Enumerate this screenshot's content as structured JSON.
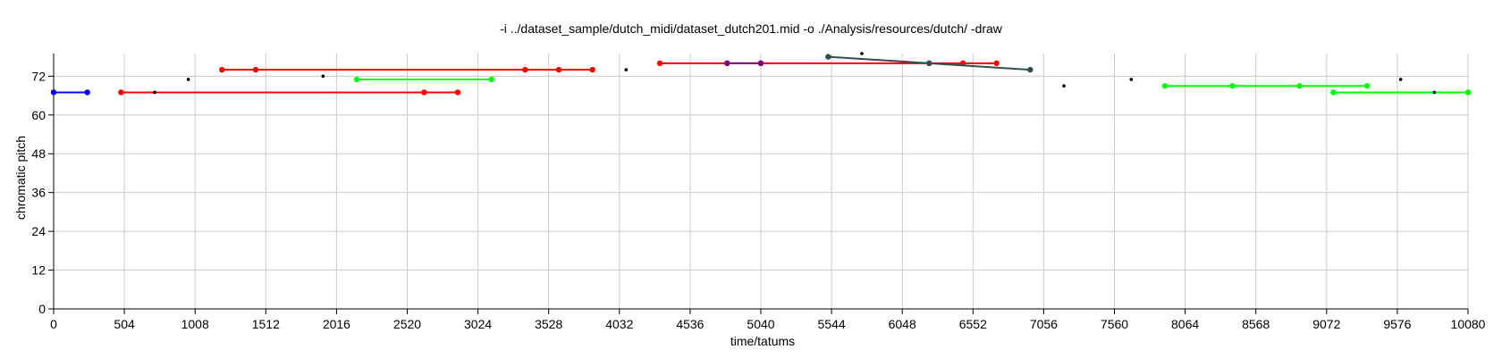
{
  "chart_data": {
    "type": "line",
    "title": "-i ../dataset_sample/dutch_midi/dataset_dutch201.mid -o ./Analysis/resources/dutch/ -draw",
    "xlabel": "time/tatums",
    "ylabel": "chromatic pitch",
    "xlim": [
      0,
      10080
    ],
    "ylim": [
      0,
      79
    ],
    "xticks": [
      0,
      504,
      1008,
      1512,
      2016,
      2520,
      3024,
      3528,
      4032,
      4536,
      5040,
      5544,
      6048,
      6552,
      7056,
      7560,
      8064,
      8568,
      9072,
      9576,
      10080
    ],
    "yticks": [
      0,
      12,
      24,
      36,
      48,
      60,
      72
    ],
    "grid": true,
    "series": [
      {
        "color": "#0000ff",
        "points": [
          [
            0,
            67
          ],
          [
            240,
            67
          ]
        ]
      },
      {
        "color": "#ff0000",
        "points": [
          [
            480,
            67
          ],
          [
            2640,
            67
          ],
          [
            2880,
            67
          ]
        ]
      },
      {
        "color": "#ff0000",
        "points": [
          [
            1200,
            74
          ],
          [
            1440,
            74
          ],
          [
            3360,
            74
          ],
          [
            3600,
            74
          ],
          [
            3840,
            74
          ]
        ]
      },
      {
        "color": "#00ff00",
        "points": [
          [
            2160,
            71
          ],
          [
            3120,
            71
          ]
        ]
      },
      {
        "color": "#ff0000",
        "points": [
          [
            4320,
            76
          ],
          [
            4800,
            76
          ],
          [
            5040,
            76
          ],
          [
            6240,
            76
          ],
          [
            6480,
            76
          ],
          [
            6720,
            76
          ]
        ]
      },
      {
        "color": "#800080",
        "points": [
          [
            4800,
            76
          ],
          [
            5040,
            76
          ]
        ]
      },
      {
        "color": "#2f4f4f",
        "points": [
          [
            5520,
            78
          ],
          [
            6240,
            76
          ],
          [
            6960,
            74
          ]
        ]
      },
      {
        "color": "#00ff00",
        "points": [
          [
            7920,
            69
          ],
          [
            8400,
            69
          ],
          [
            8880,
            69
          ],
          [
            9360,
            69
          ]
        ]
      },
      {
        "color": "#00ff00",
        "points": [
          [
            9120,
            67
          ],
          [
            10080,
            67
          ]
        ]
      }
    ],
    "isolated_notes": [
      [
        720,
        67
      ],
      [
        960,
        71
      ],
      [
        1920,
        72
      ],
      [
        4080,
        74
      ],
      [
        5760,
        79
      ],
      [
        7200,
        69
      ],
      [
        7680,
        71
      ],
      [
        9600,
        71
      ],
      [
        9840,
        67
      ]
    ]
  }
}
